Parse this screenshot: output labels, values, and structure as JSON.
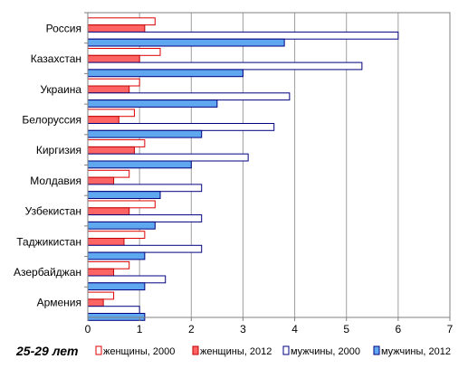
{
  "chart_data": {
    "type": "bar",
    "orientation": "horizontal",
    "subtitle": "25-29 лет",
    "categories": [
      "Россия",
      "Казахстан",
      "Украина",
      "Белоруссия",
      "Киргизия",
      "Молдавия",
      "Узбекистан",
      "Таджикистан",
      "Азербайджан",
      "Армения"
    ],
    "xlim": [
      0,
      7
    ],
    "x_ticks": [
      "0",
      "1",
      "2",
      "3",
      "4",
      "5",
      "6",
      "7"
    ],
    "grid": true,
    "legend_position": "bottom",
    "series": [
      {
        "name": "женщины, 2000",
        "values": [
          1.3,
          1.4,
          1.0,
          0.9,
          1.1,
          0.8,
          1.3,
          1.1,
          0.8,
          0.5
        ],
        "fill": "#ffffff",
        "stroke": "#e00000"
      },
      {
        "name": "женщины, 2012",
        "values": [
          1.1,
          1.0,
          0.8,
          0.6,
          0.9,
          0.5,
          0.8,
          0.7,
          0.5,
          0.3
        ],
        "fill": "#ff6464",
        "stroke": "#c00000"
      },
      {
        "name": "мужчины, 2000",
        "values": [
          6.0,
          5.3,
          3.9,
          3.6,
          3.1,
          2.2,
          2.2,
          2.2,
          1.5,
          1.0
        ],
        "fill": "#ffffff",
        "stroke": "#000080"
      },
      {
        "name": "мужчины, 2012",
        "values": [
          3.8,
          3.0,
          2.5,
          2.2,
          2.0,
          1.4,
          1.3,
          1.1,
          1.1,
          1.1
        ],
        "fill": "#5fa8f0",
        "stroke": "#000080"
      }
    ]
  }
}
